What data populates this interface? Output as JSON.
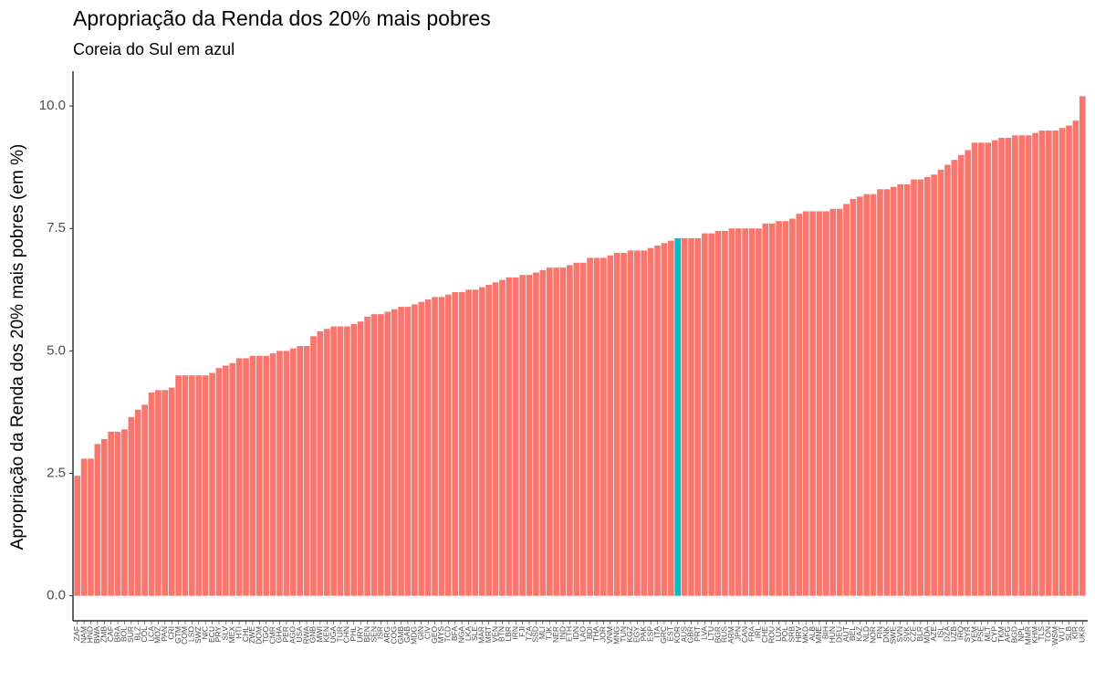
{
  "chart_data": {
    "type": "bar",
    "title": "Apropriação da Renda dos 20% mais pobres",
    "subtitle": "Coreia do Sul em azul",
    "y_label": "Apropriação da Renda dos 20% mais pobres (em %)",
    "categories": [
      "ZAF",
      "NAM",
      "HND",
      "BWA",
      "ZMB",
      "CAF",
      "BRA",
      "BOL",
      "SUR",
      "BLZ",
      "COL",
      "LCA",
      "MOZ",
      "PAN",
      "CRI",
      "GTM",
      "COM",
      "LSO",
      "SWZ",
      "NIC",
      "ECU",
      "PRY",
      "SLV",
      "MEX",
      "HTI",
      "CHL",
      "ZWE",
      "DOM",
      "TGO",
      "CMR",
      "GHA",
      "PER",
      "AGO",
      "USA",
      "RWA",
      "GNB",
      "MWI",
      "KEN",
      "UGA",
      "TUR",
      "CHN",
      "PHL",
      "URY",
      "BEN",
      "SEN",
      "ISR",
      "ARG",
      "COG",
      "GMB",
      "GAB",
      "MDG",
      "GIN",
      "CIV",
      "GEO",
      "MYS",
      "TCD",
      "BFA",
      "NGA",
      "LKA",
      "SLE",
      "MAR",
      "MRT",
      "VEN",
      "BTN",
      "LBR",
      "IRN",
      "FJI",
      "TZA",
      "SSD",
      "MLI",
      "TJK",
      "NER",
      "IND",
      "ETH",
      "IDN",
      "LAO",
      "BDI",
      "THA",
      "JOR",
      "VNM",
      "MNG",
      "TUN",
      "KGZ",
      "EGY",
      "PAK",
      "ESP",
      "ITA",
      "GRC",
      "EST",
      "KOR",
      "AUS",
      "GBR",
      "PRT",
      "LVA",
      "LTU",
      "BGR",
      "RUS",
      "ARM",
      "JPN",
      "CAN",
      "FRA",
      "IRL",
      "CHE",
      "ROU",
      "LUX",
      "POL",
      "SRB",
      "HRV",
      "MKD",
      "ALB",
      "MNE",
      "BIH",
      "HUN",
      "DEU",
      "AUT",
      "BEL",
      "KAZ",
      "NLD",
      "NOR",
      "FIN",
      "DNK",
      "SWE",
      "SVN",
      "SVK",
      "CZE",
      "BLR",
      "MDA",
      "AZE",
      "ISL",
      "DZA",
      "UZB",
      "IRQ",
      "SYR",
      "YEM",
      "PSE",
      "MLT",
      "CYP",
      "TKM",
      "AFG",
      "BGD",
      "NPL",
      "MMR",
      "KHM",
      "TLS",
      "TON",
      "WSM",
      "VUT",
      "SLB",
      "KIR",
      "UKR"
    ],
    "values": [
      2.45,
      2.8,
      2.8,
      3.1,
      3.2,
      3.35,
      3.35,
      3.4,
      3.65,
      3.8,
      3.9,
      4.15,
      4.2,
      4.2,
      4.25,
      4.5,
      4.5,
      4.5,
      4.5,
      4.5,
      4.55,
      4.65,
      4.7,
      4.75,
      4.85,
      4.85,
      4.9,
      4.9,
      4.9,
      4.95,
      5.0,
      5.0,
      5.05,
      5.1,
      5.1,
      5.3,
      5.4,
      5.45,
      5.5,
      5.5,
      5.5,
      5.55,
      5.6,
      5.7,
      5.75,
      5.75,
      5.8,
      5.85,
      5.9,
      5.9,
      5.95,
      6.0,
      6.05,
      6.1,
      6.1,
      6.15,
      6.2,
      6.2,
      6.25,
      6.25,
      6.3,
      6.35,
      6.4,
      6.45,
      6.5,
      6.5,
      6.55,
      6.55,
      6.6,
      6.65,
      6.7,
      6.7,
      6.7,
      6.75,
      6.8,
      6.8,
      6.9,
      6.9,
      6.9,
      6.95,
      7.0,
      7.0,
      7.05,
      7.05,
      7.05,
      7.1,
      7.15,
      7.2,
      7.25,
      7.3,
      7.3,
      7.3,
      7.3,
      7.4,
      7.4,
      7.45,
      7.45,
      7.5,
      7.5,
      7.5,
      7.5,
      7.5,
      7.6,
      7.6,
      7.65,
      7.65,
      7.7,
      7.8,
      7.85,
      7.85,
      7.85,
      7.85,
      7.9,
      7.9,
      8.0,
      8.1,
      8.15,
      8.2,
      8.2,
      8.3,
      8.3,
      8.35,
      8.4,
      8.4,
      8.5,
      8.5,
      8.55,
      8.6,
      8.7,
      8.8,
      8.9,
      9.0,
      9.1,
      9.25,
      9.25,
      9.25,
      9.3,
      9.35,
      9.35,
      9.4,
      9.4,
      9.4,
      9.45,
      9.5,
      9.5,
      9.5,
      9.55,
      9.6,
      9.7,
      10.2
    ],
    "color": "#f8766d",
    "highlight": {
      "index": 89,
      "color": "#00bfc4"
    },
    "ylim": [
      -0.51,
      10.71
    ],
    "yticks": [
      {
        "value": 0,
        "label": "0.0"
      },
      {
        "value": 2.5,
        "label": "2.5"
      },
      {
        "value": 5,
        "label": "5.0"
      },
      {
        "value": 7.5,
        "label": "7.5"
      },
      {
        "value": 10,
        "label": "10.0"
      }
    ],
    "grid": false
  }
}
